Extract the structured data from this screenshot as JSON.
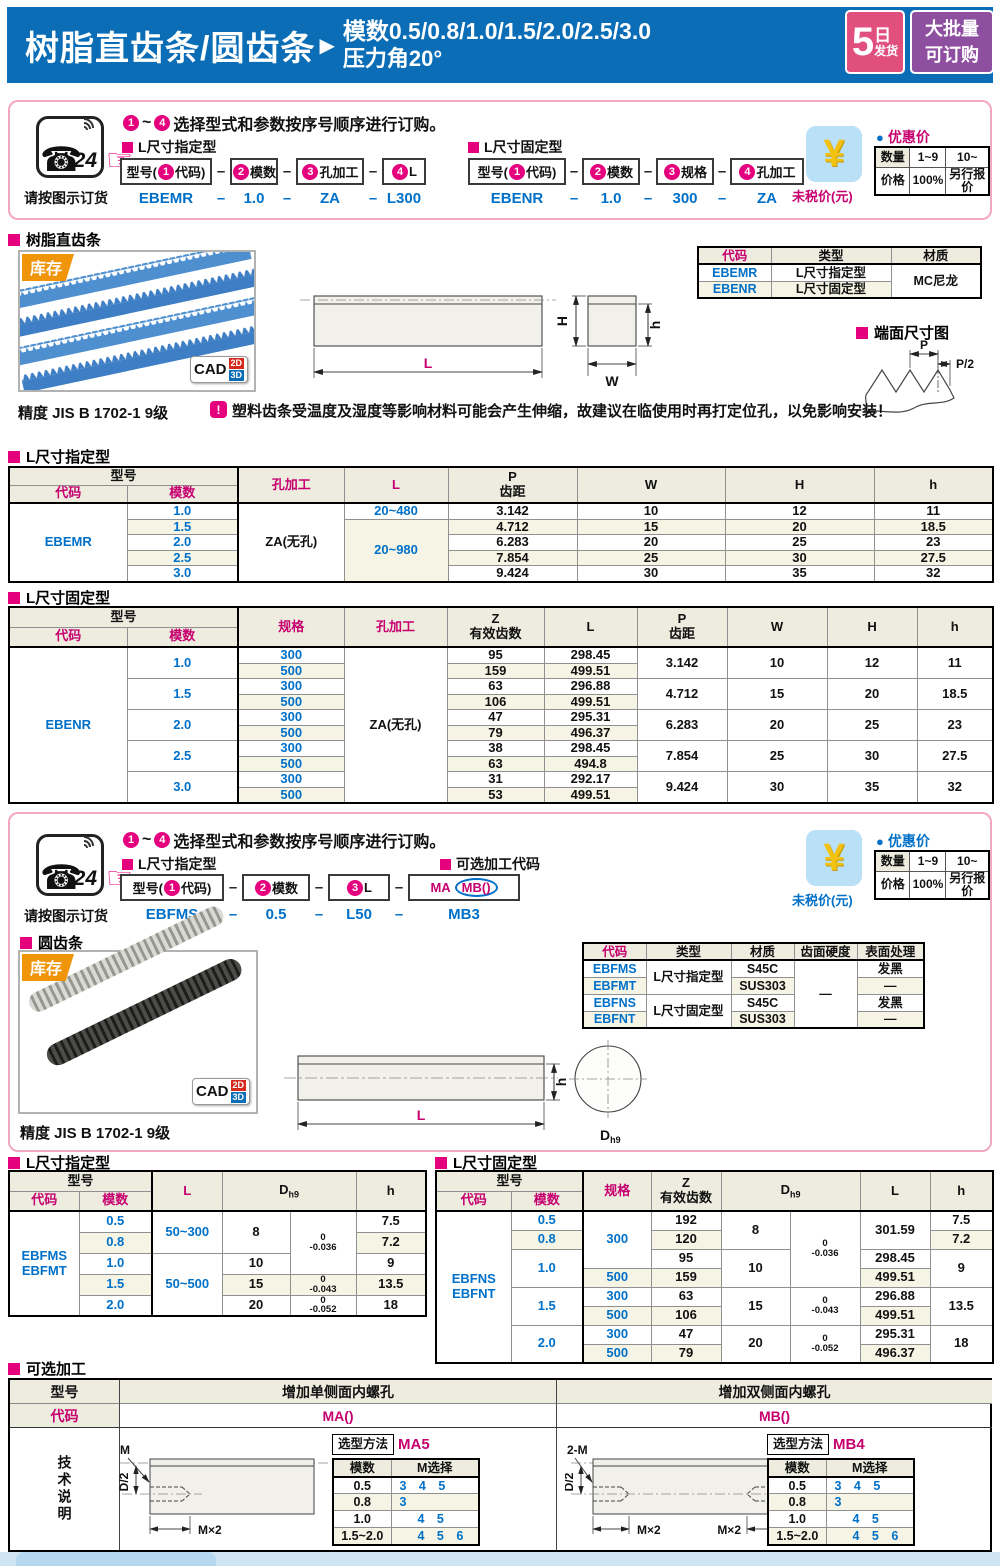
{
  "page": {
    "header": {
      "title": "树脂直齿条/圆齿条",
      "arrow": "▶",
      "spec1": "模数0.5/0.8/1.0/1.5/2.0/2.5/3.0",
      "spec2": "压力角20°",
      "badge1": {
        "big": "5",
        "day": "日",
        "small": "发货"
      },
      "badge2": {
        "line1": "大批量",
        "line2": "可订购"
      }
    }
  },
  "shared": {
    "dash": "–",
    "phone": {
      "glyph": "☎",
      "num": "24",
      "caption": "请按图示订货"
    },
    "pointer": "☞",
    "instruction": {
      "n1": "1",
      "tilde": "~",
      "n2": "4",
      "text": "选择型式和参数按序号顺序进行订购。"
    },
    "price": {
      "yen": "¥",
      "untaxed": "未税价(元)",
      "bullet": "●",
      "title": "优惠价",
      "table": {
        "cols": [
          40,
          36,
          48
        ],
        "body": [
          [
            {
              "t": "数量",
              "c": "ph"
            },
            {
              "t": "1~9"
            },
            {
              "t": "10~"
            }
          ],
          [
            {
              "t": "价格",
              "c": "ph"
            },
            {
              "t": "100%"
            },
            {
              "t": "另行报价"
            }
          ]
        ]
      }
    },
    "cad": {
      "label": "CAD",
      "d2": "2D",
      "d3": "3D"
    },
    "stock": "库存"
  },
  "order1": {
    "g1": {
      "heading": "L尺寸指定型",
      "b1": {
        "pre": "型号(",
        "n": "1",
        "post": "代码)"
      },
      "b2": {
        "n": "2",
        "post": "模数"
      },
      "b3": {
        "n": "3",
        "post": "孔加工"
      },
      "b4": {
        "n": "4",
        "post": "L"
      },
      "e1": "EBEMR",
      "e2": "1.0",
      "e3": "ZA",
      "e4": "L300"
    },
    "g2": {
      "heading": "L尺寸固定型",
      "b1": {
        "pre": "型号(",
        "n": "1",
        "post": "代码)"
      },
      "b2": {
        "n": "2",
        "post": "模数"
      },
      "b3": {
        "n": "3",
        "post": "规格"
      },
      "b4": {
        "n": "4",
        "post": "孔加工"
      },
      "e1": "EBENR",
      "e2": "1.0",
      "e3": "300",
      "e4": "ZA"
    }
  },
  "resin": {
    "heading": "树脂直齿条",
    "precision": "精度 JIS B 1702-1 9级",
    "note_icon": "!",
    "note": "塑料齿条受温度及湿度等影响材料可能会产生伸缩，故建议在临使用时再打定位孔，以免影响安装！",
    "endface": "端面尺寸图",
    "dims": {
      "L": "L",
      "W": "W",
      "H": "H",
      "h": "h",
      "P": "P",
      "P2": "P/2"
    },
    "type_table": {
      "cols": [
        73,
        120,
        90
      ],
      "head": [
        [
          {
            "t": "代码",
            "c": "mag"
          },
          {
            "t": "类型"
          },
          {
            "t": "材质"
          }
        ]
      ],
      "body": [
        [
          {
            "t": "EBEMR",
            "c": "code"
          },
          {
            "t": "L尺寸指定型"
          },
          {
            "t": "MC尼龙",
            "rs": 2
          }
        ],
        [
          {
            "t": "EBENR",
            "c": "code"
          },
          {
            "t": "L尺寸固定型"
          }
        ]
      ]
    }
  },
  "spec": {
    "heading": "L尺寸指定型",
    "table": {
      "cols": [
        118,
        111,
        106,
        104,
        129,
        148,
        149,
        119
      ],
      "head": [
        [
          {
            "t": "型号",
            "cs": 2,
            "c": "bR"
          },
          {
            "t": "孔加工",
            "rs": 2,
            "c": "mag"
          },
          {
            "t": "L",
            "rs": 2,
            "c": "mag"
          },
          {
            "t": "P\n齿距",
            "rs": 2
          },
          {
            "t": "W",
            "rs": 2
          },
          {
            "t": "H",
            "rs": 2
          },
          {
            "t": "h",
            "rs": 2
          }
        ],
        [
          {
            "t": "代码",
            "c": "mag"
          },
          {
            "t": "模数",
            "c": "mag bR"
          }
        ]
      ],
      "body": [
        [
          {
            "t": "EBEMR",
            "rs": 5,
            "c": "code"
          },
          {
            "t": "1.0",
            "c": "code bR"
          },
          {
            "t": "ZA(无孔)",
            "rs": 5
          },
          {
            "t": "20~480",
            "c": "code"
          },
          "3.142",
          "10",
          "12",
          "11"
        ],
        [
          {
            "t": "1.5",
            "c": "code bR"
          },
          {
            "t": "20~980",
            "rs": 4,
            "c": "code"
          },
          "4.712",
          "15",
          "20",
          "18.5"
        ],
        [
          {
            "t": "2.0",
            "c": "code bR"
          },
          "6.283",
          "20",
          "25",
          "23"
        ],
        [
          {
            "t": "2.5",
            "c": "code bR"
          },
          "7.854",
          "25",
          "30",
          "27.5"
        ],
        [
          {
            "t": "3.0",
            "c": "code bR"
          },
          "9.424",
          "30",
          "35",
          "32"
        ]
      ]
    }
  },
  "fixed": {
    "heading": "L尺寸固定型",
    "table": {
      "cols": [
        118,
        111,
        106,
        103,
        97,
        93,
        90,
        100,
        90,
        76
      ],
      "head": [
        [
          {
            "t": "型号",
            "cs": 2,
            "c": "bR"
          },
          {
            "t": "规格",
            "rs": 2,
            "c": "mag"
          },
          {
            "t": "孔加工",
            "rs": 2,
            "c": "mag"
          },
          {
            "t": "Z\n有效齿数",
            "rs": 2
          },
          {
            "t": "L",
            "rs": 2
          },
          {
            "t": "P\n齿距",
            "rs": 2
          },
          {
            "t": "W",
            "rs": 2
          },
          {
            "t": "H",
            "rs": 2
          },
          {
            "t": "h",
            "rs": 2
          }
        ],
        [
          {
            "t": "代码",
            "c": "mag"
          },
          {
            "t": "模数",
            "c": "mag bR"
          }
        ]
      ],
      "body": [
        [
          {
            "t": "EBENR",
            "rs": 10,
            "c": "code"
          },
          {
            "t": "1.0",
            "rs": 2,
            "c": "code bR"
          },
          {
            "t": "300",
            "c": "code"
          },
          {
            "t": "ZA(无孔)",
            "rs": 10
          },
          "95",
          "298.45",
          {
            "t": "3.142",
            "rs": 2
          },
          {
            "t": "10",
            "rs": 2
          },
          {
            "t": "12",
            "rs": 2
          },
          {
            "t": "11",
            "rs": 2
          }
        ],
        [
          {
            "t": "500",
            "c": "code"
          },
          "159",
          "499.51"
        ],
        [
          {
            "t": "1.5",
            "rs": 2,
            "c": "code bR"
          },
          {
            "t": "300",
            "c": "code"
          },
          "63",
          "296.88",
          {
            "t": "4.712",
            "rs": 2
          },
          {
            "t": "15",
            "rs": 2
          },
          {
            "t": "20",
            "rs": 2
          },
          {
            "t": "18.5",
            "rs": 2
          }
        ],
        [
          {
            "t": "500",
            "c": "code"
          },
          "106",
          "499.51"
        ],
        [
          {
            "t": "2.0",
            "rs": 2,
            "c": "code bR"
          },
          {
            "t": "300",
            "c": "code"
          },
          "47",
          "295.31",
          {
            "t": "6.283",
            "rs": 2
          },
          {
            "t": "20",
            "rs": 2
          },
          {
            "t": "25",
            "rs": 2
          },
          {
            "t": "23",
            "rs": 2
          }
        ],
        [
          {
            "t": "500",
            "c": "code"
          },
          "79",
          "496.37"
        ],
        [
          {
            "t": "2.5",
            "rs": 2,
            "c": "code bR"
          },
          {
            "t": "300",
            "c": "code"
          },
          "38",
          "298.45",
          {
            "t": "7.854",
            "rs": 2
          },
          {
            "t": "25",
            "rs": 2
          },
          {
            "t": "30",
            "rs": 2
          },
          {
            "t": "27.5",
            "rs": 2
          }
        ],
        [
          {
            "t": "500",
            "c": "code"
          },
          "63",
          "494.8"
        ],
        [
          {
            "t": "3.0",
            "rs": 2,
            "c": "code bR"
          },
          {
            "t": "300",
            "c": "code"
          },
          "31",
          "292.17",
          {
            "t": "9.424",
            "rs": 2
          },
          {
            "t": "30",
            "rs": 2
          },
          {
            "t": "35",
            "rs": 2
          },
          {
            "t": "32",
            "rs": 2
          }
        ],
        [
          {
            "t": "500",
            "c": "code"
          },
          "53",
          "499.51"
        ]
      ]
    }
  },
  "order2": {
    "g1": {
      "heading": "L尺寸指定型",
      "b1": {
        "pre": "型号(",
        "n": "1",
        "post": "代码)"
      },
      "b2": {
        "n": "2",
        "post": "模数"
      },
      "b3": {
        "n": "3",
        "post": "L"
      },
      "e1": "EBFMS",
      "e2": "0.5",
      "e3": "L50",
      "e4": "MB3"
    },
    "opt_heading": "可选加工代码",
    "ma": "MA",
    "mb": "MB()"
  },
  "round": {
    "heading": "圆齿条",
    "precision": "精度 JIS B 1702-1 9级",
    "dims": {
      "L": "L",
      "h": "h",
      "D": "D",
      "D_sub": "h9"
    },
    "type_table": {
      "cols": [
        63,
        85,
        63,
        63,
        67
      ],
      "head": [
        [
          {
            "t": "代码",
            "c": "mag"
          },
          {
            "t": "类型"
          },
          {
            "t": "材质"
          },
          {
            "t": "齿面硬度"
          },
          {
            "t": "表面处理"
          }
        ]
      ],
      "body": [
        [
          {
            "t": "EBFMS",
            "c": "code"
          },
          {
            "t": "L尺寸指定型",
            "rs": 2
          },
          {
            "t": "S45C"
          },
          {
            "t": "—",
            "rs": 4
          },
          {
            "t": "发黑"
          }
        ],
        [
          {
            "t": "EBFMT",
            "c": "code"
          },
          {
            "t": "SUS303"
          },
          {
            "t": "—"
          }
        ],
        [
          {
            "t": "EBFNS",
            "c": "code"
          },
          {
            "t": "L尺寸固定型",
            "rs": 2
          },
          {
            "t": "S45C"
          },
          {
            "t": "发黑"
          }
        ],
        [
          {
            "t": "EBFNT",
            "c": "code"
          },
          {
            "t": "SUS303"
          },
          {
            "t": "—"
          }
        ]
      ]
    }
  },
  "rspec": {
    "heading": "L尺寸指定型",
    "table": {
      "cols": [
        70,
        73,
        70,
        68,
        66,
        70
      ],
      "head": [
        [
          {
            "t": "型号",
            "cs": 2,
            "c": "bR"
          },
          {
            "t": "L",
            "rs": 2,
            "c": "mag"
          },
          {
            "t": "D",
            "sub": "h9",
            "rs": 2,
            "cs": 2
          },
          {
            "t": "h",
            "rs": 2
          }
        ],
        [
          {
            "t": "代码",
            "c": "mag"
          },
          {
            "t": "模数",
            "c": "mag bR"
          }
        ]
      ],
      "body": [
        [
          {
            "t": "EBFMS\nEBFMT",
            "rs": 5,
            "c": "code"
          },
          {
            "t": "0.5",
            "c": "code bR"
          },
          {
            "t": "50~300",
            "rs": 2,
            "c": "code"
          },
          {
            "t": "8",
            "rs": 2
          },
          {
            "t": "0\n-0.036",
            "rs": 3,
            "c": "tol"
          },
          "7.5"
        ],
        [
          {
            "t": "0.8",
            "c": "code bR"
          },
          "7.2"
        ],
        [
          {
            "t": "1.0",
            "c": "code bR"
          },
          {
            "t": "50~500",
            "rs": 3,
            "c": "code"
          },
          "10",
          "9"
        ],
        [
          {
            "t": "1.5",
            "c": "code bR"
          },
          "15",
          {
            "t": "0\n-0.043",
            "c": "tol"
          },
          "13.5"
        ],
        [
          {
            "t": "2.0",
            "c": "code bR"
          },
          "20",
          {
            "t": "0\n-0.052",
            "c": "tol"
          },
          "18"
        ]
      ]
    }
  },
  "rfixed": {
    "heading": "L尺寸固定型",
    "table": {
      "cols": [
        75,
        72,
        68,
        70,
        69,
        70,
        70,
        63
      ],
      "head": [
        [
          {
            "t": "型号",
            "cs": 2,
            "c": "bR"
          },
          {
            "t": "规格",
            "rs": 2,
            "c": "mag"
          },
          {
            "t": "Z\n有效齿数",
            "rs": 2
          },
          {
            "t": "D",
            "sub": "h9",
            "rs": 2,
            "cs": 2
          },
          {
            "t": "L",
            "rs": 2
          },
          {
            "t": "h",
            "rs": 2
          }
        ],
        [
          {
            "t": "代码",
            "c": "mag"
          },
          {
            "t": "模数",
            "c": "mag bR"
          }
        ]
      ],
      "body": [
        [
          {
            "t": "EBFNS\nEBFNT",
            "rs": 8,
            "c": "code"
          },
          {
            "t": "0.5",
            "c": "code bR"
          },
          {
            "t": "300",
            "rs": 3,
            "c": "code"
          },
          "192",
          {
            "t": "8",
            "rs": 2
          },
          {
            "t": "0\n-0.036",
            "rs": 4,
            "c": "tol"
          },
          {
            "t": "301.59",
            "rs": 2
          },
          "7.5"
        ],
        [
          {
            "t": "0.8",
            "c": "code bR"
          },
          "120",
          "7.2"
        ],
        [
          {
            "t": "1.0",
            "rs": 2,
            "c": "code bR"
          },
          "95",
          {
            "t": "10",
            "rs": 2
          },
          "298.45",
          {
            "t": "9",
            "rs": 2
          }
        ],
        [
          {
            "t": "500",
            "c": "code"
          },
          "159",
          "499.51"
        ],
        [
          {
            "t": "1.5",
            "rs": 2,
            "c": "code bR"
          },
          {
            "t": "300",
            "c": "code"
          },
          "63",
          {
            "t": "15",
            "rs": 2
          },
          {
            "t": "0\n-0.043",
            "rs": 2,
            "c": "tol"
          },
          "296.88",
          {
            "t": "13.5",
            "rs": 2
          }
        ],
        [
          {
            "t": "500",
            "c": "code"
          },
          "106",
          "499.51"
        ],
        [
          {
            "t": "2.0",
            "rs": 2,
            "c": "code bR"
          },
          {
            "t": "300",
            "c": "code"
          },
          "47",
          {
            "t": "20",
            "rs": 2
          },
          {
            "t": "0\n-0.052",
            "rs": 2,
            "c": "tol"
          },
          "295.31",
          {
            "t": "18",
            "rs": 2
          }
        ],
        [
          {
            "t": "500",
            "c": "code"
          },
          "79",
          "496.37"
        ]
      ]
    }
  },
  "optional": {
    "heading": "可选加工",
    "col1": "型号",
    "col2": "增加单侧面内螺孔",
    "col3": "增加双侧面内螺孔",
    "code_label": "代码",
    "code_ma": "MA()",
    "code_mb": "MB()",
    "tech": "技术说明",
    "method_label": "选型方法",
    "ma_code": "MA5",
    "mb_code": "MB4",
    "m_table": {
      "cols": [
        58,
        88
      ],
      "head": [
        [
          {
            "t": "模数"
          },
          {
            "t": "M选择"
          }
        ]
      ],
      "body": [
        [
          "0.5",
          {
            "t": "3 4 5",
            "c": "code left mss"
          }
        ],
        [
          "0.8",
          {
            "t": "3",
            "c": "code left mss"
          }
        ],
        [
          "1.0",
          {
            "t": "4 5",
            "c": "code left mss ind"
          }
        ],
        [
          "1.5~2.0",
          {
            "t": "4 5 6",
            "c": "code left mss ind"
          }
        ]
      ]
    },
    "dims": {
      "M": "M",
      "M2": "2-M",
      "D2": "D/2",
      "Mx2": "M×2"
    }
  }
}
